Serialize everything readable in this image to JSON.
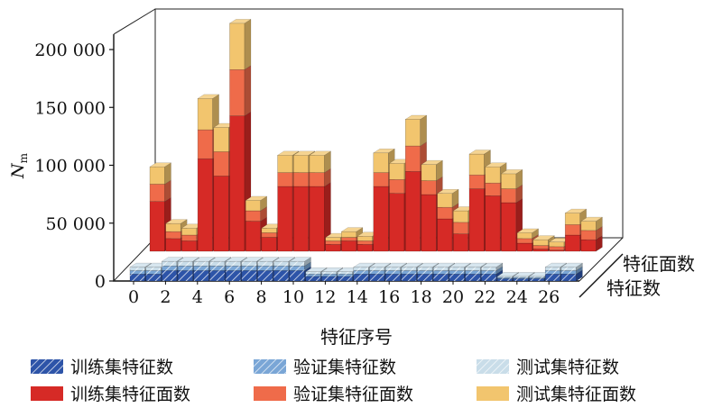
{
  "chart_data": {
    "type": "bar",
    "projection": "3d-stacked",
    "ylabel": "N",
    "ylabel_sub": "m",
    "xlabel": "特征序号",
    "ylim": [
      0,
      240000
    ],
    "y_ticks": [
      0,
      50000,
      100000,
      150000,
      200000
    ],
    "y_tick_labels": [
      "0",
      "50 000",
      "100 000",
      "150 000",
      "200 000"
    ],
    "x_tick_labels": [
      "0",
      "2",
      "4",
      "6",
      "8",
      "10",
      "12",
      "14",
      "16",
      "18",
      "20",
      "22",
      "24",
      "26"
    ],
    "depth_labels": [
      "特征面数",
      "特征数"
    ],
    "categories": [
      0,
      1,
      2,
      3,
      4,
      5,
      6,
      7,
      8,
      9,
      10,
      11,
      12,
      13,
      14,
      15,
      16,
      17,
      18,
      19,
      20,
      21,
      22,
      23,
      24,
      25,
      26,
      27
    ],
    "rows": [
      {
        "row": "特征面数",
        "series": [
          {
            "name": "训练集特征面数",
            "color": "#d62a26",
            "values": [
              43000,
              11000,
              9000,
              80000,
              65000,
              117000,
              26000,
              12000,
              56000,
              56000,
              56000,
              6000,
              9000,
              6000,
              56000,
              50000,
              69000,
              49000,
              28000,
              15000,
              54000,
              48000,
              42000,
              7000,
              2000,
              1000,
              14000,
              10000
            ]
          },
          {
            "name": "验证集特征面数",
            "color": "#ef6b4a",
            "values": [
              15000,
              6000,
              5000,
              25000,
              21000,
              40000,
              9000,
              4000,
              12000,
              12000,
              12000,
              3000,
              3000,
              3000,
              12000,
              12000,
              22000,
              12000,
              10000,
              10000,
              12000,
              11000,
              12000,
              4000,
              3000,
              3000,
              9000,
              8000
            ]
          },
          {
            "name": "测试集特征面数",
            "color": "#f2c56e",
            "values": [
              15000,
              7000,
              6000,
              27000,
              21000,
              40000,
              9000,
              4000,
              15000,
              15000,
              15000,
              3000,
              5000,
              4000,
              17000,
              14000,
              23000,
              14000,
              12000,
              10000,
              18000,
              14000,
              13000,
              5000,
              5000,
              4000,
              10000,
              8000
            ]
          }
        ]
      },
      {
        "row": "特征数",
        "series": [
          {
            "name": "训练集特征数",
            "color": "#2d54a8",
            "values": [
              6000,
              6000,
              9000,
              9000,
              9000,
              9000,
              9000,
              9000,
              9000,
              9000,
              9000,
              4000,
              4000,
              4000,
              6000,
              6000,
              6000,
              6000,
              6000,
              6000,
              6000,
              6000,
              6000,
              2000,
              2000,
              2000,
              6000,
              6000
            ]
          },
          {
            "name": "验证集特征数",
            "color": "#7aa6d6",
            "values": [
              3000,
              3000,
              4000,
              4000,
              4000,
              4000,
              4000,
              4000,
              4000,
              4000,
              4000,
              2000,
              2000,
              2000,
              3000,
              3000,
              3000,
              3000,
              3000,
              3000,
              3000,
              3000,
              3000,
              1000,
              1000,
              1000,
              3000,
              3000
            ]
          },
          {
            "name": "测试集特征数",
            "color": "#c9dde9",
            "values": [
              3000,
              3000,
              4000,
              4000,
              4000,
              4000,
              4000,
              4000,
              4000,
              4000,
              4000,
              2000,
              2000,
              2000,
              3000,
              3000,
              3000,
              3000,
              3000,
              3000,
              3000,
              3000,
              3000,
              1000,
              1000,
              1000,
              3000,
              3000
            ]
          }
        ]
      }
    ],
    "legend": {
      "placement": "bottom",
      "items": [
        {
          "label": "训练集特征数",
          "color": "#2d54a8",
          "hatched": true
        },
        {
          "label": "验证集特征数",
          "color": "#7aa6d6",
          "hatched": true
        },
        {
          "label": "测试集特征数",
          "color": "#c9dde9",
          "hatched": true
        },
        {
          "label": "训练集特征面数",
          "color": "#d62a26",
          "hatched": false
        },
        {
          "label": "验证集特征面数",
          "color": "#ef6b4a",
          "hatched": false
        },
        {
          "label": "测试集特征面数",
          "color": "#f2c56e",
          "hatched": false
        }
      ]
    }
  }
}
